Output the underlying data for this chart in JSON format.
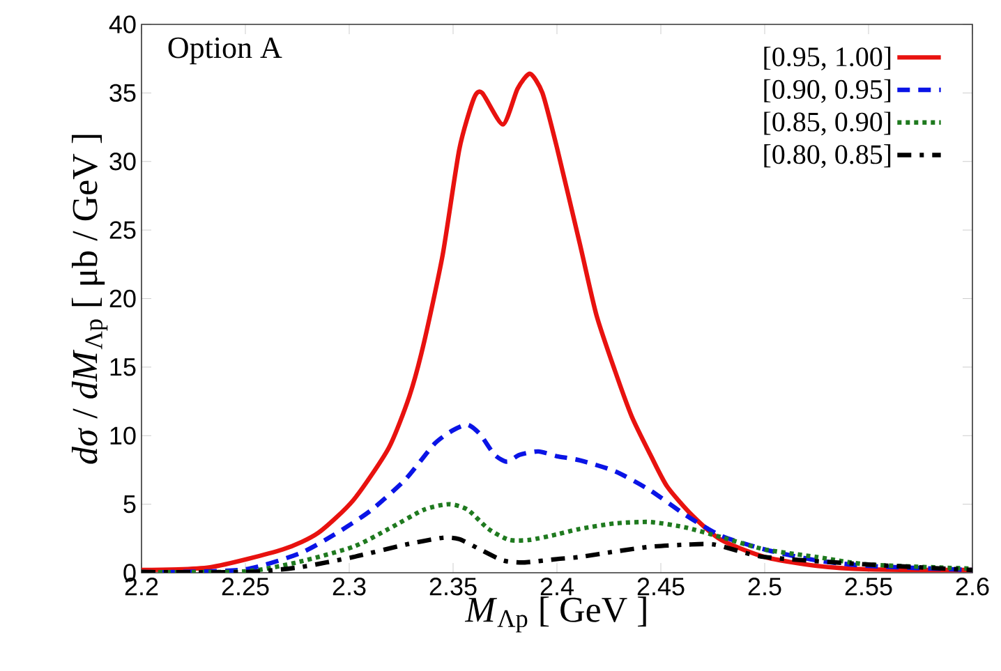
{
  "chart_data": {
    "type": "line",
    "xlabel": "*M*$_{Λp}$  [ GeV ]",
    "ylabel": "*dσ* / *dM*$_{Λp}$  [ μb / GeV ]",
    "annotations": [
      "Option A"
    ],
    "xlim": [
      2.2,
      2.6
    ],
    "ylim": [
      0,
      40
    ],
    "xticks": [
      2.2,
      2.25,
      2.3,
      2.35,
      2.4,
      2.45,
      2.5,
      2.55,
      2.6
    ],
    "yticks": [
      0,
      5,
      10,
      15,
      20,
      25,
      30,
      35,
      40
    ],
    "legend": "top right",
    "series": [
      {
        "name": "[0.95, 1.00]",
        "color": "#e8120f",
        "line_style": "solid",
        "x": [
          2.2,
          2.233,
          2.268,
          2.285,
          2.302,
          2.319,
          2.329,
          2.336,
          2.345,
          2.353,
          2.36,
          2.364,
          2.374,
          2.381,
          2.387,
          2.393,
          2.4,
          2.411,
          2.419,
          2.428,
          2.436,
          2.445,
          2.453,
          2.465,
          2.479,
          2.5,
          2.525,
          2.55,
          2.6
        ],
        "values": [
          0.2,
          0.4,
          1.7,
          2.9,
          5.3,
          9.1,
          12.9,
          16.8,
          23.2,
          30.9,
          34.6,
          35.0,
          32.7,
          35.3,
          36.4,
          35.0,
          31.0,
          24.0,
          18.8,
          14.7,
          11.4,
          8.6,
          6.3,
          4.2,
          2.4,
          1.15,
          0.5,
          0.25,
          0.2
        ]
      },
      {
        "name": "[0.90, 0.95]",
        "color": "#0a14e6",
        "line_style": "dashed",
        "x": [
          2.2,
          2.216,
          2.25,
          2.276,
          2.293,
          2.31,
          2.327,
          2.341,
          2.35,
          2.357,
          2.363,
          2.37,
          2.376,
          2.382,
          2.391,
          2.4,
          2.411,
          2.428,
          2.445,
          2.462,
          2.479,
          2.5,
          2.525,
          2.55,
          2.6
        ],
        "values": [
          0.05,
          0.05,
          0.25,
          1.4,
          2.8,
          4.5,
          6.8,
          9.4,
          10.4,
          10.8,
          10.1,
          8.6,
          8.1,
          8.6,
          8.85,
          8.5,
          8.2,
          7.4,
          6.0,
          4.2,
          2.7,
          1.7,
          0.9,
          0.5,
          0.2
        ]
      },
      {
        "name": "[0.85, 0.90]",
        "color": "#1f7a1f",
        "line_style": "dotted",
        "x": [
          2.2,
          2.25,
          2.276,
          2.302,
          2.319,
          2.336,
          2.348,
          2.357,
          2.367,
          2.377,
          2.387,
          2.4,
          2.411,
          2.428,
          2.445,
          2.462,
          2.479,
          2.5,
          2.525,
          2.55,
          2.6
        ],
        "values": [
          0.05,
          0.1,
          0.8,
          1.9,
          3.2,
          4.6,
          5.0,
          4.6,
          3.2,
          2.4,
          2.4,
          2.8,
          3.2,
          3.6,
          3.7,
          3.3,
          2.6,
          1.7,
          1.15,
          0.6,
          0.3
        ]
      },
      {
        "name": "[0.80, 0.85]",
        "color": "#000000",
        "line_style": "dashdot",
        "x": [
          2.2,
          2.25,
          2.276,
          2.302,
          2.327,
          2.345,
          2.353,
          2.363,
          2.374,
          2.384,
          2.4,
          2.411,
          2.428,
          2.445,
          2.462,
          2.476,
          2.5,
          2.55,
          2.6
        ],
        "values": [
          0.05,
          0.05,
          0.4,
          1.15,
          2.05,
          2.55,
          2.45,
          1.7,
          0.9,
          0.75,
          1.0,
          1.15,
          1.55,
          1.9,
          2.05,
          2.05,
          1.15,
          0.6,
          0.2
        ]
      }
    ]
  }
}
